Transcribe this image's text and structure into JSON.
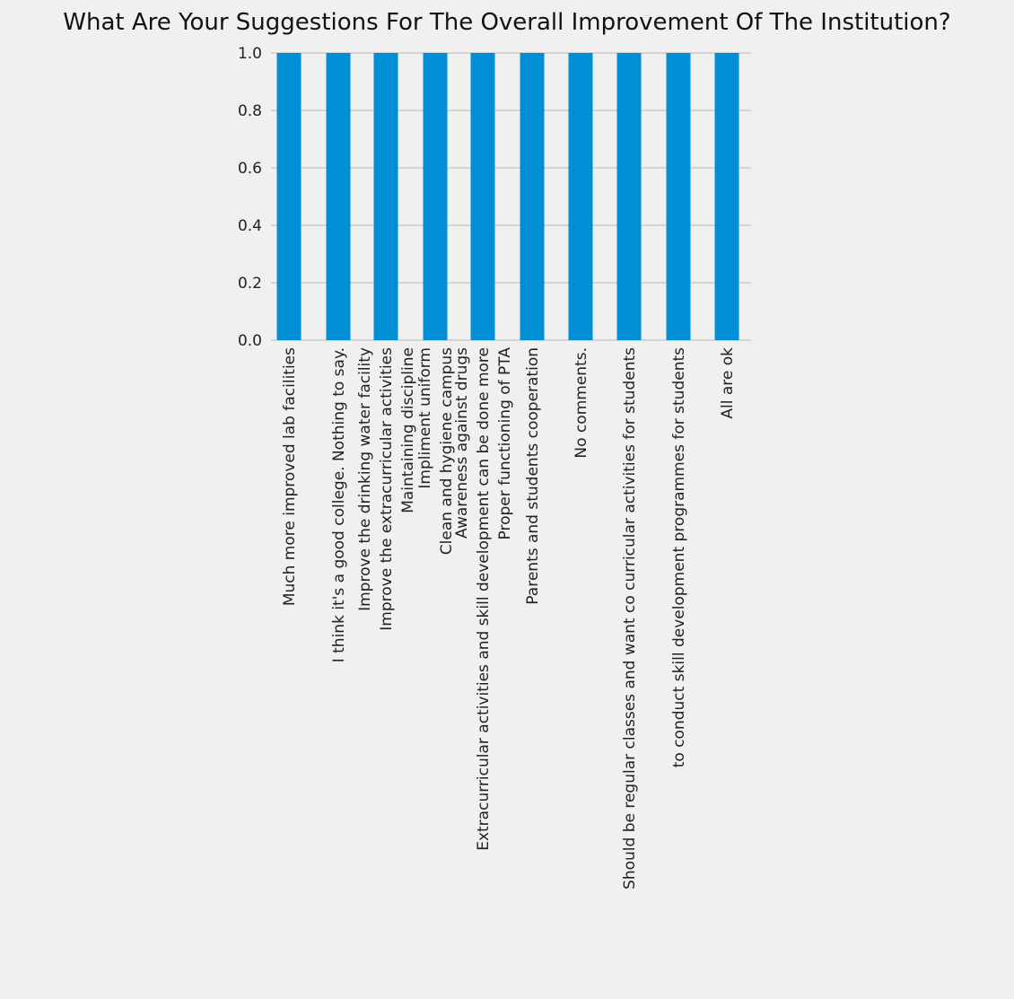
{
  "chart_data": {
    "type": "bar",
    "title": "What Are Your Suggestions For The Overall Improvement Of The Institution?",
    "xlabel": "",
    "ylabel": "",
    "categories": [
      "Much more improved lab facilities",
      "I think it's a good college. Nothing to say.",
      "Improve the drinking water facility",
      "Improve the extracurricular activities",
      "Maintaining discipline",
      "Impliment uniform",
      "Clean and hygiene campus",
      "Awareness against drugs",
      "Extracurricular activities and skill development can be done more",
      "Proper functioning of PTA",
      "Parents and students cooperation",
      "No comments.",
      "Should be regular classes and want co curricular activities for students",
      "to conduct skill development programmes for students",
      "All are ok"
    ],
    "values": [
      1,
      1,
      1,
      1,
      1,
      1,
      1,
      1,
      1,
      1,
      1,
      1,
      1,
      1,
      1
    ],
    "ylim": [
      0,
      1.0
    ],
    "yticks": [
      "0.0",
      "0.2",
      "0.4",
      "0.6",
      "0.8",
      "1.0"
    ],
    "grid": true,
    "legend": "none",
    "colors": {
      "bar": "#008fd5",
      "background": "#f0f0f0",
      "grid": "#cbcbcb"
    }
  }
}
